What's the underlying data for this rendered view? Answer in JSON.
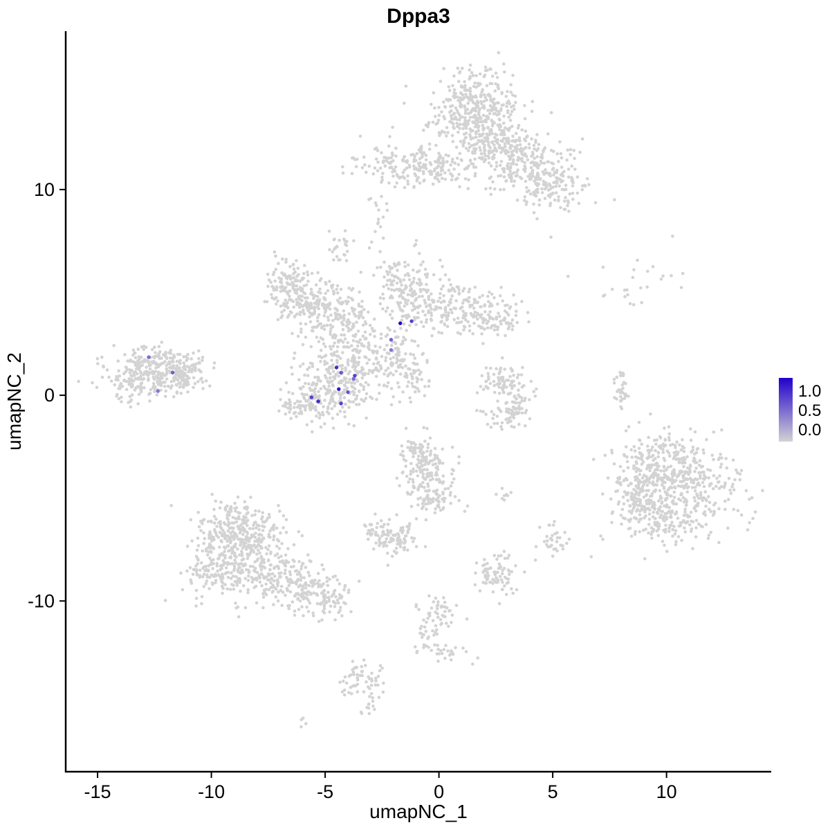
{
  "title": "Dppa3",
  "axes": {
    "x_label": "umapNC_1",
    "y_label": "umapNC_2",
    "x_ticks": [
      {
        "value": -15,
        "label": "-15"
      },
      {
        "value": -10,
        "label": "-10"
      },
      {
        "value": -5,
        "label": "-5"
      },
      {
        "value": 0,
        "label": "0"
      },
      {
        "value": 5,
        "label": "5"
      },
      {
        "value": 10,
        "label": "10"
      }
    ],
    "y_ticks": [
      {
        "value": -10,
        "label": "-10"
      },
      {
        "value": 0,
        "label": "0"
      },
      {
        "value": 10,
        "label": "10"
      }
    ]
  },
  "legend": {
    "labels": [
      "1.0",
      "0.5",
      "0.0"
    ],
    "low_color": "#d3d3d3",
    "high_color": "#2200cc"
  },
  "style": {
    "background": "#ffffff",
    "point_color_base": "#d3d3d3",
    "point_radius": 2.3,
    "highlight_radius": 2.7,
    "axis_color": "#000000"
  },
  "chart_data": {
    "type": "scatter",
    "title": "Dppa3",
    "xlabel": "umapNC_1",
    "ylabel": "umapNC_2",
    "xlim": [
      -16.4,
      14.6
    ],
    "ylim": [
      -18.3,
      17.7
    ],
    "color_scale": {
      "low": "#d3d3d3",
      "high": "#2200cc",
      "domain": [
        0.0,
        1.0
      ],
      "legend_breaks": [
        1.0,
        0.5,
        0.0
      ]
    },
    "clusters": [
      {
        "cx": 1.6,
        "cy": 14.2,
        "sx": 0.9,
        "sy": 0.85,
        "n": 260
      },
      {
        "cx": 2.3,
        "cy": 12.4,
        "sx": 0.8,
        "sy": 0.8,
        "n": 200
      },
      {
        "cx": 3.6,
        "cy": 11.3,
        "sx": 1.0,
        "sy": 0.7,
        "n": 160
      },
      {
        "cx": 5.0,
        "cy": 10.2,
        "sx": 0.8,
        "sy": 0.8,
        "n": 140
      },
      {
        "cx": -1.6,
        "cy": 11.2,
        "sx": 1.1,
        "sy": 0.45,
        "n": 120
      },
      {
        "cx": -0.1,
        "cy": 11.0,
        "sx": 0.7,
        "sy": 0.5,
        "n": 80
      },
      {
        "cx": 1.0,
        "cy": 12.9,
        "sx": 1.5,
        "sy": 1.1,
        "n": 80
      },
      {
        "cx": -2.6,
        "cy": 8.8,
        "sx": 0.25,
        "sy": 0.9,
        "n": 16
      },
      {
        "cx": -4.4,
        "cy": 7.3,
        "sx": 0.3,
        "sy": 0.45,
        "n": 25
      },
      {
        "cx": -6.6,
        "cy": 5.4,
        "sx": 0.55,
        "sy": 0.55,
        "n": 110
      },
      {
        "cx": -5.9,
        "cy": 4.4,
        "sx": 0.6,
        "sy": 0.6,
        "n": 110
      },
      {
        "cx": -4.6,
        "cy": 4.0,
        "sx": 0.7,
        "sy": 0.7,
        "n": 160
      },
      {
        "cx": -1.5,
        "cy": 5.3,
        "sx": 0.7,
        "sy": 0.8,
        "n": 150
      },
      {
        "cx": 0.5,
        "cy": 4.3,
        "sx": 1.2,
        "sy": 0.6,
        "n": 170
      },
      {
        "cx": 2.2,
        "cy": 3.8,
        "sx": 0.7,
        "sy": 0.5,
        "n": 90
      },
      {
        "cx": -3.6,
        "cy": 1.6,
        "sx": 0.9,
        "sy": 0.9,
        "n": 200
      },
      {
        "cx": -5.0,
        "cy": 0.3,
        "sx": 0.9,
        "sy": 0.8,
        "n": 180
      },
      {
        "cx": -5.7,
        "cy": -0.5,
        "sx": 0.7,
        "sy": 0.4,
        "n": 70
      },
      {
        "cx": -1.9,
        "cy": 2.2,
        "sx": 0.5,
        "sy": 0.6,
        "n": 55
      },
      {
        "cx": -1.3,
        "cy": 1.0,
        "sx": 0.55,
        "sy": 0.55,
        "n": 55
      },
      {
        "cx": -12.7,
        "cy": 0.9,
        "sx": 1.0,
        "sy": 0.55,
        "n": 260
      },
      {
        "cx": -11.3,
        "cy": 1.2,
        "sx": 0.6,
        "sy": 0.4,
        "n": 100
      },
      {
        "cx": -12.3,
        "cy": 1.9,
        "sx": 0.8,
        "sy": 0.3,
        "n": 40
      },
      {
        "cx": 2.6,
        "cy": 0.6,
        "sx": 0.5,
        "sy": 0.5,
        "n": 60
      },
      {
        "cx": 3.3,
        "cy": -0.2,
        "sx": 0.4,
        "sy": 0.6,
        "n": 60
      },
      {
        "cx": 2.9,
        "cy": -1.0,
        "sx": 0.5,
        "sy": 0.3,
        "n": 40
      },
      {
        "cx": 8.0,
        "cy": 0.3,
        "sx": 0.16,
        "sy": 0.55,
        "n": 35
      },
      {
        "cx": 8.5,
        "cy": 5.6,
        "sx": 1.1,
        "sy": 0.8,
        "n": 25
      },
      {
        "cx": 10.6,
        "cy": -4.3,
        "sx": 1.3,
        "sy": 1.1,
        "n": 420
      },
      {
        "cx": 8.9,
        "cy": -4.6,
        "sx": 0.7,
        "sy": 0.9,
        "n": 160
      },
      {
        "cx": 10.2,
        "cy": -6.3,
        "sx": 1.0,
        "sy": 0.5,
        "n": 90
      },
      {
        "cx": 9.6,
        "cy": -2.6,
        "sx": 0.9,
        "sy": 0.4,
        "n": 60
      },
      {
        "cx": -8.6,
        "cy": -7.8,
        "sx": 1.1,
        "sy": 1.0,
        "n": 380
      },
      {
        "cx": -8.8,
        "cy": -6.3,
        "sx": 0.8,
        "sy": 0.6,
        "n": 140
      },
      {
        "cx": -6.3,
        "cy": -9.2,
        "sx": 1.0,
        "sy": 0.6,
        "n": 160
      },
      {
        "cx": -4.9,
        "cy": -9.9,
        "sx": 0.6,
        "sy": 0.4,
        "n": 70
      },
      {
        "cx": -10.2,
        "cy": -8.8,
        "sx": 0.5,
        "sy": 0.6,
        "n": 60
      },
      {
        "cx": -0.6,
        "cy": -3.6,
        "sx": 0.6,
        "sy": 0.8,
        "n": 140
      },
      {
        "cx": -0.2,
        "cy": -5.0,
        "sx": 0.5,
        "sy": 0.5,
        "n": 70
      },
      {
        "cx": -0.9,
        "cy": -2.6,
        "sx": 0.3,
        "sy": 0.3,
        "n": 30
      },
      {
        "cx": -1.9,
        "cy": -6.9,
        "sx": 0.55,
        "sy": 0.45,
        "n": 90
      },
      {
        "cx": -2.8,
        "cy": -6.6,
        "sx": 0.25,
        "sy": 0.25,
        "n": 20
      },
      {
        "cx": 2.5,
        "cy": -8.7,
        "sx": 0.45,
        "sy": 0.5,
        "n": 80
      },
      {
        "cx": 5.0,
        "cy": -7.1,
        "sx": 0.3,
        "sy": 0.5,
        "n": 35
      },
      {
        "cx": 2.9,
        "cy": -4.9,
        "sx": 0.3,
        "sy": 0.2,
        "n": 8
      },
      {
        "cx": 0.1,
        "cy": -10.4,
        "sx": 0.5,
        "sy": 0.5,
        "n": 40
      },
      {
        "cx": -0.4,
        "cy": -11.8,
        "sx": 0.4,
        "sy": 0.5,
        "n": 30
      },
      {
        "cx": 0.6,
        "cy": -12.6,
        "sx": 0.5,
        "sy": 0.3,
        "n": 20
      },
      {
        "cx": -3.4,
        "cy": -13.8,
        "sx": 0.4,
        "sy": 0.5,
        "n": 60
      },
      {
        "cx": -3.1,
        "cy": -15.1,
        "sx": 0.2,
        "sy": 0.3,
        "n": 12
      },
      {
        "cx": -6.1,
        "cy": -15.9,
        "sx": 0.15,
        "sy": 0.15,
        "n": 4
      }
    ],
    "highlights": [
      {
        "x": -1.7,
        "y": 3.5,
        "v": 1.0
      },
      {
        "x": -1.2,
        "y": 3.6,
        "v": 0.7
      },
      {
        "x": -2.1,
        "y": 2.7,
        "v": 0.55
      },
      {
        "x": -2.1,
        "y": 2.2,
        "v": 0.45
      },
      {
        "x": -4.5,
        "y": 1.35,
        "v": 0.8
      },
      {
        "x": -4.3,
        "y": 1.1,
        "v": 0.6
      },
      {
        "x": -3.7,
        "y": 0.95,
        "v": 0.7
      },
      {
        "x": -3.75,
        "y": 0.8,
        "v": 0.5
      },
      {
        "x": -4.4,
        "y": 0.3,
        "v": 0.9
      },
      {
        "x": -4.0,
        "y": 0.15,
        "v": 0.6
      },
      {
        "x": -5.6,
        "y": -0.1,
        "v": 0.7
      },
      {
        "x": -5.3,
        "y": -0.3,
        "v": 0.8
      },
      {
        "x": -4.3,
        "y": -0.4,
        "v": 0.7
      },
      {
        "x": -12.75,
        "y": 1.85,
        "v": 0.5
      },
      {
        "x": -11.7,
        "y": 1.1,
        "v": 0.55
      },
      {
        "x": -12.35,
        "y": 0.2,
        "v": 0.45
      }
    ]
  }
}
